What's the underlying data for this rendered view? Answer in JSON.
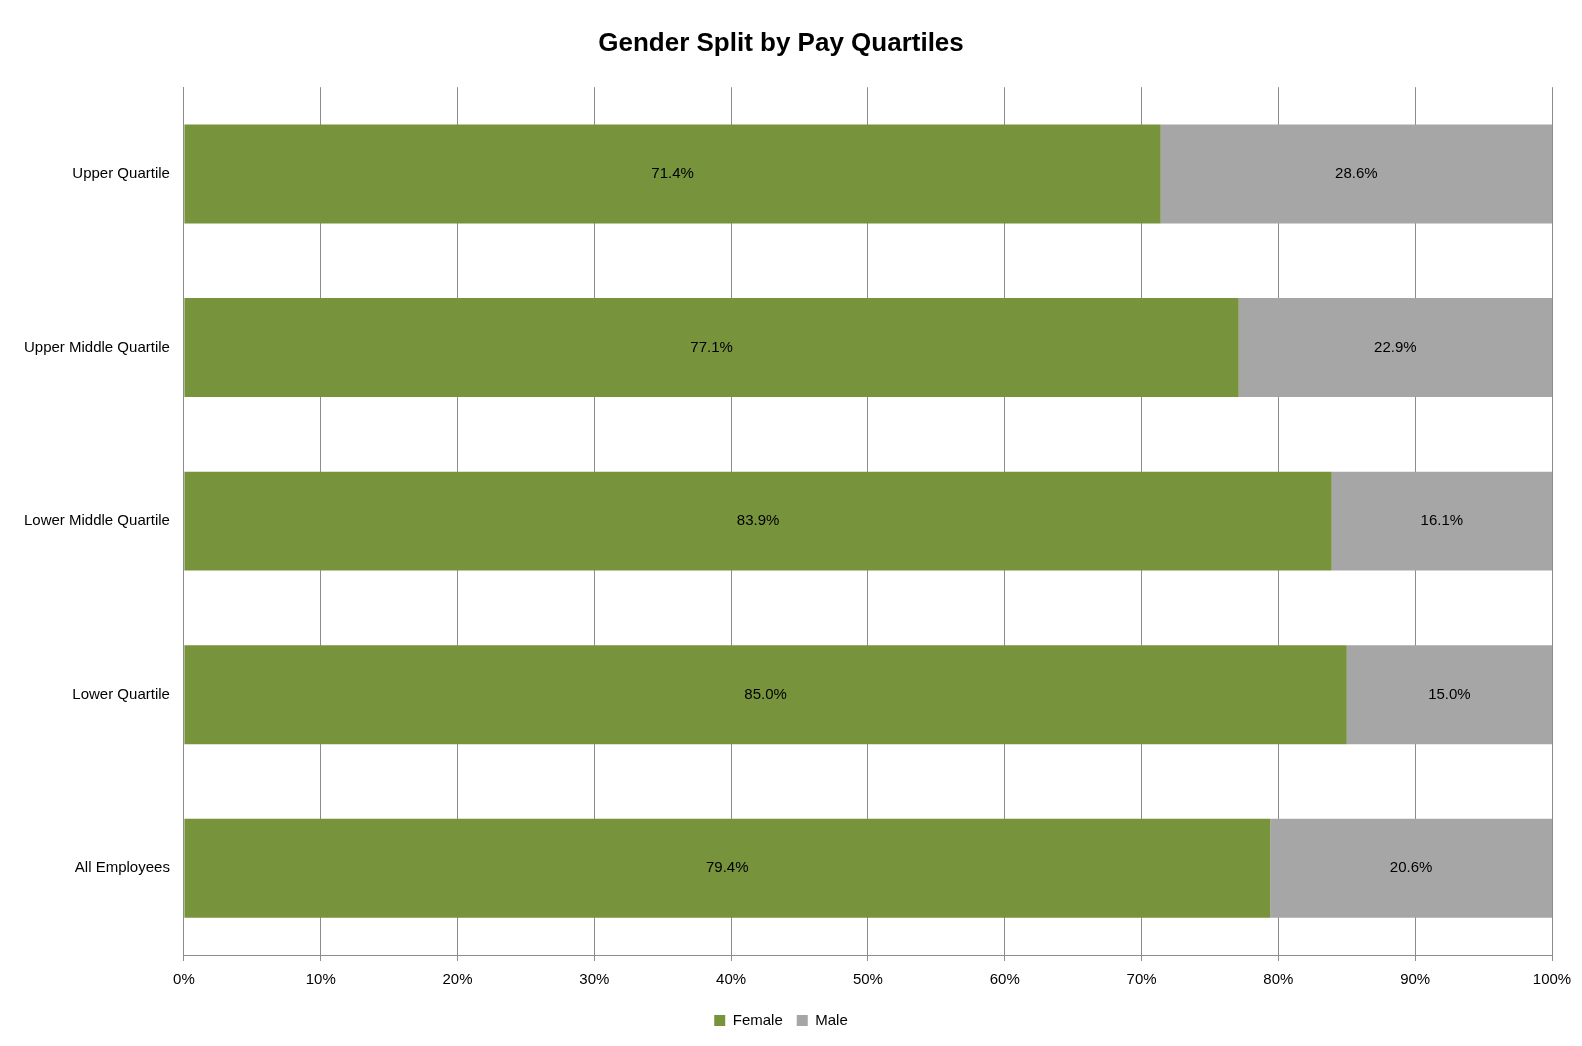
{
  "chart_data": {
    "type": "bar",
    "title": "Gender Split by Pay Quartiles",
    "orientation": "horizontal",
    "stacked": true,
    "categories": [
      "Upper Quartile",
      "Upper Middle Quartile",
      "Lower Middle Quartile",
      "Lower Quartile",
      "All Employees"
    ],
    "series": [
      {
        "name": "Female",
        "color": "#77933c",
        "values": [
          71.4,
          77.1,
          83.9,
          85.0,
          79.4
        ],
        "value_labels": [
          "71.4%",
          "77.1%",
          "83.9%",
          "85.0%",
          "79.4%"
        ]
      },
      {
        "name": "Male",
        "color": "#a6a6a6",
        "values": [
          28.6,
          22.9,
          16.1,
          15.0,
          20.6
        ],
        "value_labels": [
          "28.6%",
          "22.9%",
          "16.1%",
          "15.0%",
          "20.6%"
        ]
      }
    ],
    "xlim": [
      0,
      100
    ],
    "xticks": [
      {
        "value": 0,
        "label": "0%"
      },
      {
        "value": 10,
        "label": "10%"
      },
      {
        "value": 20,
        "label": "20%"
      },
      {
        "value": 30,
        "label": "30%"
      },
      {
        "value": 40,
        "label": "40%"
      },
      {
        "value": 50,
        "label": "50%"
      },
      {
        "value": 60,
        "label": "60%"
      },
      {
        "value": 70,
        "label": "70%"
      },
      {
        "value": 80,
        "label": "80%"
      },
      {
        "value": 90,
        "label": "90%"
      },
      {
        "value": 100,
        "label": "100%"
      }
    ],
    "grid": "x",
    "legend": "bottom"
  }
}
